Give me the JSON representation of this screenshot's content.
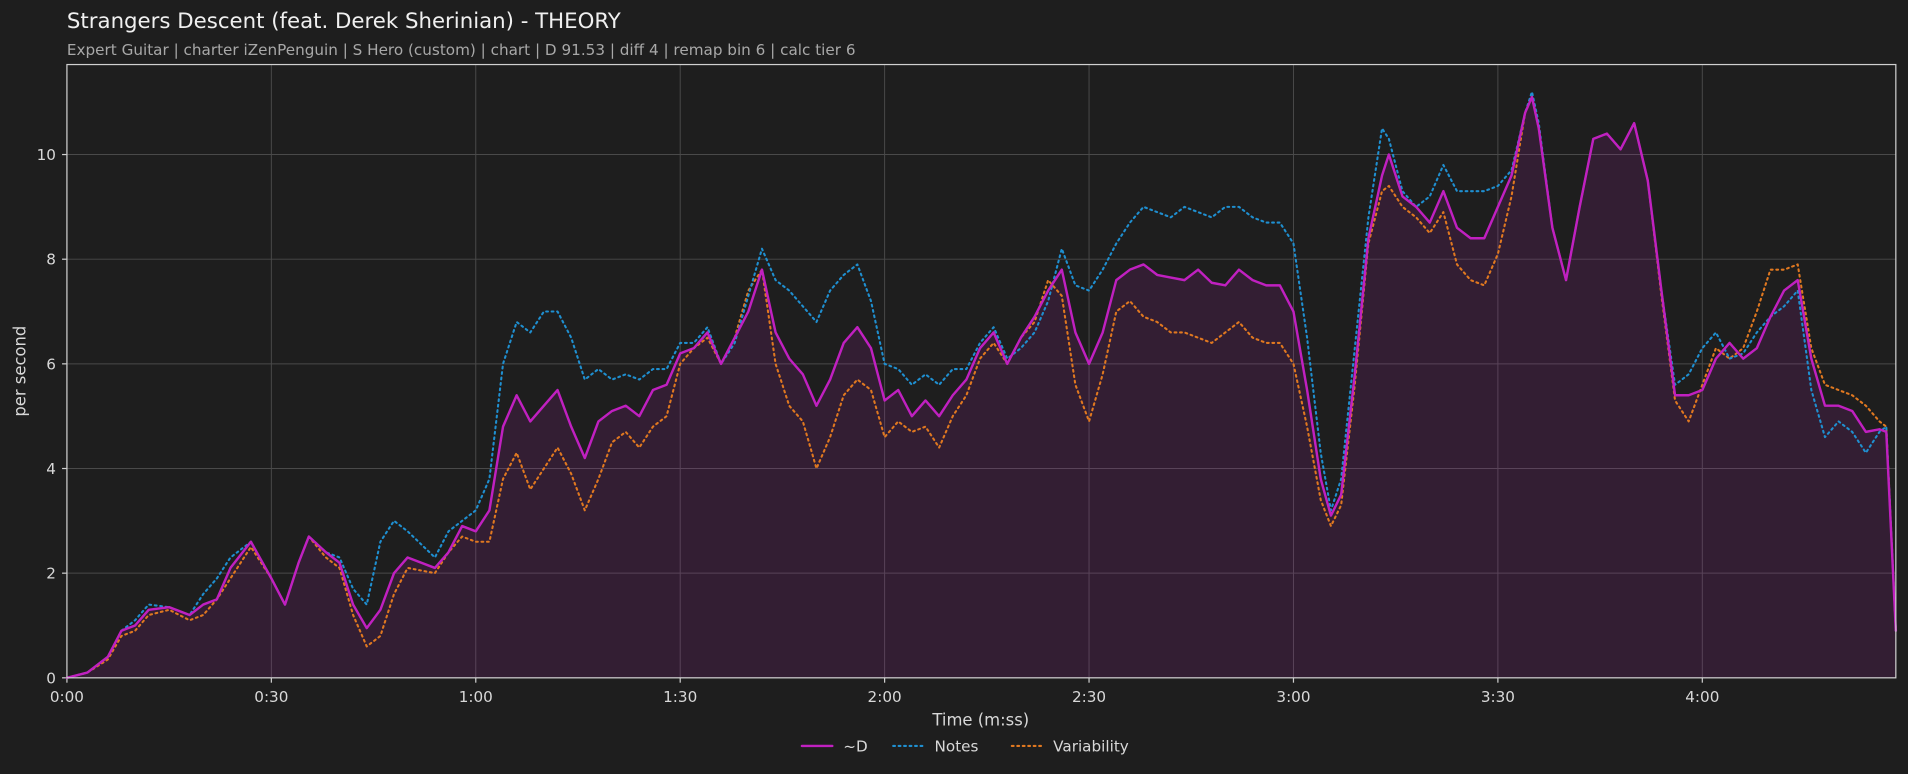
{
  "chart_data": {
    "type": "line",
    "title": "Strangers Descent (feat. Derek Sherinian) - THEORY",
    "subtitle": "Expert Guitar  |  charter iZenPenguin  |  S Hero (custom)  |  chart  |  D 91.53  |  diff 4  |  remap bin 6  |  calc tier 6",
    "xlabel": "Time (m:ss)",
    "ylabel": "per second",
    "xlim": [
      0,
      268.4
    ],
    "ylim": [
      0,
      11.72
    ],
    "xticks": [
      {
        "value": 0,
        "label": "0:00"
      },
      {
        "value": 30,
        "label": "0:30"
      },
      {
        "value": 60,
        "label": "1:00"
      },
      {
        "value": 90,
        "label": "1:30"
      },
      {
        "value": 120,
        "label": "2:00"
      },
      {
        "value": 150,
        "label": "2:30"
      },
      {
        "value": 180,
        "label": "3:00"
      },
      {
        "value": 210,
        "label": "3:30"
      },
      {
        "value": 240,
        "label": "4:00"
      }
    ],
    "yticks": [
      0,
      2,
      4,
      6,
      8,
      10
    ],
    "grid": true,
    "legend": "bottom",
    "x": [
      0,
      3,
      6,
      8,
      10,
      12,
      15,
      18,
      20,
      22,
      24,
      27,
      30,
      32,
      34,
      35.5,
      38,
      40,
      42,
      44,
      46,
      48,
      50,
      54,
      56,
      58,
      60,
      62,
      64,
      66,
      68,
      70,
      72,
      74,
      76,
      78,
      80,
      82,
      84,
      86,
      88,
      90,
      92,
      94,
      96,
      98,
      100,
      102,
      104,
      106,
      108,
      110,
      112,
      114,
      116,
      118,
      120,
      122,
      124,
      126,
      128,
      130,
      132,
      134,
      136,
      138,
      140,
      142,
      144,
      146,
      148,
      150,
      152,
      154,
      156,
      158,
      160,
      162,
      164,
      166,
      168,
      170,
      172,
      174,
      176,
      178,
      180,
      182,
      184,
      185.5,
      187,
      189,
      191,
      193,
      194,
      196,
      198,
      200,
      202,
      204,
      206,
      208,
      210,
      212,
      214,
      215,
      216,
      218,
      220,
      222,
      224,
      226,
      228,
      230,
      232,
      234,
      236,
      238,
      240,
      242,
      244,
      246,
      248,
      250,
      252,
      254,
      256,
      258,
      260,
      262,
      264,
      266,
      267,
      268.4
    ],
    "series": [
      {
        "name": "~D",
        "color": "#c020c0",
        "linestyle": "solid",
        "fill": true,
        "values": [
          0,
          0.1,
          0.4,
          0.9,
          1.0,
          1.3,
          1.35,
          1.2,
          1.4,
          1.5,
          2.1,
          2.6,
          1.9,
          1.4,
          2.2,
          2.7,
          2.4,
          2.2,
          1.4,
          0.95,
          1.3,
          2.0,
          2.3,
          2.1,
          2.4,
          2.9,
          2.8,
          3.2,
          4.8,
          5.4,
          4.9,
          5.2,
          5.5,
          4.8,
          4.2,
          4.9,
          5.1,
          5.2,
          5.0,
          5.5,
          5.6,
          6.2,
          6.3,
          6.6,
          6.0,
          6.5,
          7.0,
          7.8,
          6.6,
          6.1,
          5.8,
          5.2,
          5.7,
          6.4,
          6.7,
          6.3,
          5.3,
          5.5,
          5.0,
          5.3,
          5.0,
          5.4,
          5.7,
          6.3,
          6.6,
          6.0,
          6.5,
          6.9,
          7.4,
          7.8,
          6.6,
          6.0,
          6.6,
          7.6,
          7.8,
          7.9,
          7.7,
          7.65,
          7.6,
          7.8,
          7.55,
          7.5,
          7.8,
          7.6,
          7.5,
          7.5,
          7.0,
          5.5,
          3.8,
          3.1,
          3.5,
          5.8,
          8.4,
          9.6,
          10.0,
          9.2,
          9.0,
          8.7,
          9.3,
          8.6,
          8.4,
          8.4,
          9.0,
          9.6,
          10.8,
          11.1,
          10.5,
          8.6,
          7.6,
          9.0,
          10.3,
          10.4,
          10.1,
          10.6,
          9.5,
          7.4,
          5.4,
          5.4,
          5.5,
          6.1,
          6.4,
          6.1,
          6.3,
          6.9,
          7.4,
          7.6,
          6.1,
          5.2,
          5.2,
          5.1,
          4.7,
          4.75,
          4.7,
          0.9
        ]
      },
      {
        "name": "Notes",
        "color": "#1f8fd0",
        "linestyle": "dotted",
        "fill": false,
        "values": [
          0,
          0.1,
          0.4,
          0.9,
          1.1,
          1.4,
          1.35,
          1.2,
          1.6,
          1.9,
          2.3,
          2.6,
          1.9,
          1.4,
          2.2,
          2.7,
          2.4,
          2.3,
          1.7,
          1.4,
          2.6,
          3.0,
          2.8,
          2.3,
          2.8,
          3.0,
          3.2,
          3.8,
          6.0,
          6.8,
          6.6,
          7.0,
          7.0,
          6.5,
          5.7,
          5.9,
          5.7,
          5.8,
          5.7,
          5.9,
          5.9,
          6.4,
          6.4,
          6.7,
          6.0,
          6.4,
          7.3,
          8.2,
          7.6,
          7.4,
          7.1,
          6.8,
          7.4,
          7.7,
          7.9,
          7.2,
          6.0,
          5.9,
          5.6,
          5.8,
          5.6,
          5.9,
          5.9,
          6.4,
          6.7,
          6.1,
          6.3,
          6.6,
          7.2,
          8.2,
          7.5,
          7.4,
          7.8,
          8.3,
          8.7,
          9.0,
          8.9,
          8.8,
          9.0,
          8.9,
          8.8,
          9.0,
          9.0,
          8.8,
          8.7,
          8.7,
          8.3,
          6.5,
          4.3,
          3.2,
          3.8,
          6.3,
          8.8,
          10.5,
          10.3,
          9.3,
          9.0,
          9.2,
          9.8,
          9.3,
          9.3,
          9.3,
          9.4,
          9.7,
          10.8,
          11.2,
          10.6,
          8.6,
          7.6,
          9.0,
          10.3,
          10.4,
          10.1,
          10.6,
          9.5,
          7.4,
          5.6,
          5.8,
          6.3,
          6.6,
          6.1,
          6.2,
          6.6,
          6.9,
          7.1,
          7.4,
          5.5,
          4.6,
          4.9,
          4.7,
          4.3,
          4.7,
          4.8,
          0.9
        ]
      },
      {
        "name": "Variability",
        "color": "#e07820",
        "linestyle": "dotted",
        "fill": false,
        "values": [
          0,
          0.1,
          0.35,
          0.8,
          0.9,
          1.2,
          1.3,
          1.1,
          1.2,
          1.5,
          1.9,
          2.5,
          1.9,
          1.4,
          2.2,
          2.7,
          2.3,
          2.1,
          1.2,
          0.6,
          0.8,
          1.6,
          2.1,
          2.0,
          2.4,
          2.7,
          2.6,
          2.6,
          3.8,
          4.3,
          3.6,
          4.0,
          4.4,
          3.9,
          3.2,
          3.8,
          4.5,
          4.7,
          4.4,
          4.8,
          5.0,
          6.0,
          6.3,
          6.5,
          6.0,
          6.5,
          7.4,
          7.8,
          6.0,
          5.2,
          4.9,
          4.0,
          4.6,
          5.4,
          5.7,
          5.5,
          4.6,
          4.9,
          4.7,
          4.8,
          4.4,
          5.0,
          5.4,
          6.1,
          6.4,
          6.0,
          6.5,
          6.8,
          7.6,
          7.3,
          5.6,
          4.9,
          5.8,
          7.0,
          7.2,
          6.9,
          6.8,
          6.6,
          6.6,
          6.5,
          6.4,
          6.6,
          6.8,
          6.5,
          6.4,
          6.4,
          6.0,
          4.8,
          3.4,
          2.9,
          3.3,
          5.6,
          8.3,
          9.3,
          9.4,
          9.0,
          8.8,
          8.5,
          8.9,
          7.9,
          7.6,
          7.5,
          8.1,
          9.2,
          10.8,
          11.1,
          10.5,
          8.6,
          7.6,
          9.0,
          10.3,
          10.4,
          10.1,
          10.6,
          9.5,
          7.3,
          5.3,
          4.9,
          5.6,
          6.3,
          6.1,
          6.3,
          7.0,
          7.8,
          7.8,
          7.9,
          6.3,
          5.6,
          5.5,
          5.4,
          5.2,
          4.9,
          4.8,
          0.9
        ]
      }
    ]
  }
}
